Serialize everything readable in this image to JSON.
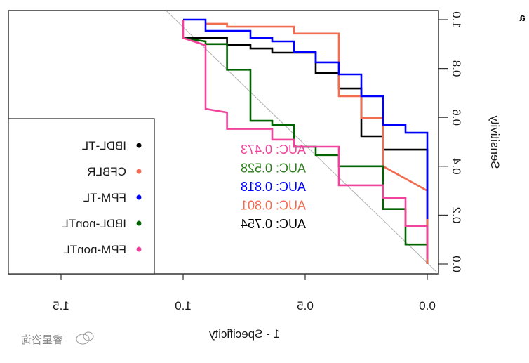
{
  "panel_label": "a",
  "watermark": "睿星咨询",
  "chart_data": {
    "type": "line",
    "mirrored_horizontally": true,
    "title": "",
    "xlabel": "1 - Specificity",
    "ylabel": "Sensitivity",
    "xlim": [
      0.0,
      1.5
    ],
    "ylim": [
      0.0,
      1.0
    ],
    "x_ticks": [
      0.0,
      0.5,
      1.0,
      1.5
    ],
    "x_tick_labels": [
      "0.0",
      "0.5",
      "1.0",
      "1.5"
    ],
    "y_ticks": [
      0.0,
      0.2,
      0.4,
      0.6,
      0.8,
      1.0
    ],
    "y_tick_labels": [
      "0.0",
      "0.2",
      "0.4",
      "0.6",
      "0.8",
      "1.0"
    ],
    "grid": false,
    "reference_line": {
      "from": [
        1.0,
        1.0
      ],
      "to": [
        0.0,
        0.0
      ],
      "color": "#b3b3b3"
    },
    "legend": {
      "position": "bottom-left",
      "entries": [
        {
          "name": "IBDL-TL",
          "color": "#000000"
        },
        {
          "name": "CFBLR",
          "color": "#f26c4f"
        },
        {
          "name": "FPM-TL",
          "color": "#0000ff"
        },
        {
          "name": "IBDL-nonTL",
          "color": "#006400"
        },
        {
          "name": "FPM-nonTL",
          "color": "#f0439b"
        }
      ]
    },
    "annotations": [
      {
        "text": "AUC: 0.473",
        "series": "FPM-nonTL",
        "color": "#f0439b"
      },
      {
        "text": "AUC: 0.528",
        "series": "IBDL-nonTL",
        "color": "#2e7d1e"
      },
      {
        "text": "AUC: 0.818",
        "series": "FPM-TL",
        "color": "#0000ff"
      },
      {
        "text": "AUC: 0.801",
        "series": "CFBLR",
        "color": "#f26c4f"
      },
      {
        "text": "AUC: 0.754",
        "series": "IBDL-TL",
        "color": "#000000"
      }
    ],
    "series": [
      {
        "name": "IBDL-TL",
        "color": "#000000",
        "auc": 0.754,
        "x": [
          1.0,
          0.82,
          0.82,
          0.724,
          0.724,
          0.635,
          0.635,
          0.457,
          0.457,
          0.362,
          0.362,
          0.27,
          0.27,
          0.181,
          0.181,
          0.0,
          0.0
        ],
        "y": [
          0.925,
          0.925,
          0.897,
          0.897,
          0.882,
          0.882,
          0.865,
          0.865,
          0.782,
          0.782,
          0.718,
          0.718,
          0.523,
          0.523,
          0.468,
          0.468,
          0.0
        ]
      },
      {
        "name": "CFBLR",
        "color": "#f26c4f",
        "auc": 0.801,
        "x": [
          0.908,
          0.82,
          0.82,
          0.546,
          0.546,
          0.362,
          0.362,
          0.27,
          0.27,
          0.181,
          0.181,
          0.0,
          0.0
        ],
        "y": [
          0.983,
          0.983,
          0.971,
          0.971,
          0.943,
          0.943,
          0.687,
          0.687,
          0.598,
          0.598,
          0.4,
          0.3,
          0.0
        ]
      },
      {
        "name": "FPM-TL",
        "color": "#0000ff",
        "auc": 0.818,
        "x": [
          1.0,
          0.908,
          0.908,
          0.724,
          0.724,
          0.635,
          0.635,
          0.546,
          0.546,
          0.457,
          0.457,
          0.362,
          0.362,
          0.27,
          0.27,
          0.181,
          0.181,
          0.089,
          0.089,
          0.0,
          0.0
        ],
        "y": [
          1.0,
          1.0,
          0.954,
          0.954,
          0.925,
          0.925,
          0.911,
          0.911,
          0.868,
          0.868,
          0.825,
          0.825,
          0.776,
          0.776,
          0.687,
          0.687,
          0.569,
          0.569,
          0.537,
          0.537,
          0.184
        ]
      },
      {
        "name": "IBDL-nonTL",
        "color": "#006400",
        "auc": 0.528,
        "x": [
          1.0,
          0.908,
          0.908,
          0.82,
          0.82,
          0.724,
          0.724,
          0.635,
          0.635,
          0.546,
          0.546,
          0.457,
          0.457,
          0.362,
          0.362,
          0.181,
          0.181,
          0.089,
          0.089,
          0.0
        ],
        "y": [
          0.925,
          0.911,
          0.9,
          0.9,
          0.795,
          0.795,
          0.586,
          0.586,
          0.569,
          0.569,
          0.48,
          0.48,
          0.446,
          0.446,
          0.4,
          0.4,
          0.225,
          0.225,
          0.08,
          0.08
        ]
      },
      {
        "name": "FPM-nonTL",
        "color": "#f0439b",
        "auc": 0.473,
        "x": [
          1.0,
          1.0,
          0.908,
          0.908,
          0.82,
          0.82,
          0.635,
          0.635,
          0.546,
          0.546,
          0.457,
          0.457,
          0.362,
          0.362,
          0.181,
          0.181,
          0.089,
          0.089,
          0.0,
          0.0
        ],
        "y": [
          1.0,
          0.925,
          0.895,
          0.635,
          0.62,
          0.553,
          0.553,
          0.509,
          0.509,
          0.48,
          0.48,
          0.48,
          0.48,
          0.322,
          0.322,
          0.27,
          0.27,
          0.155,
          0.155,
          0.02
        ]
      }
    ]
  }
}
